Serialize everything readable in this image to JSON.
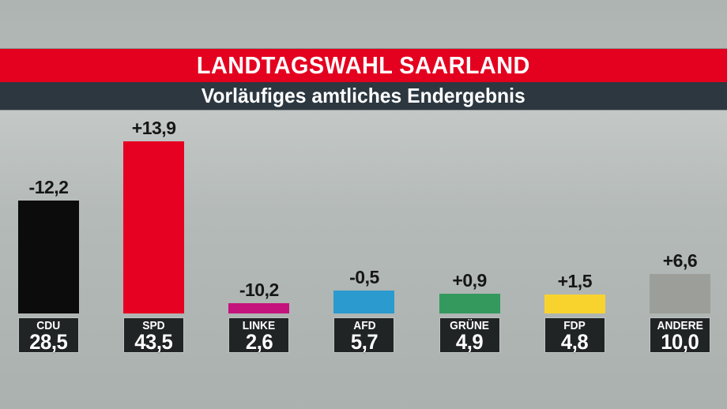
{
  "header": {
    "title": "LANDTAGSWAHL SAARLAND",
    "subtitle": "Vorläufiges amtliches Endergebnis"
  },
  "colors": {
    "banner_red": "#e4001f",
    "banner_dark": "#2c3740",
    "background_gray": "#b2b8b6",
    "result_box_bg": "#212425",
    "result_box_text": "#ffffff",
    "change_label_text": "#161616"
  },
  "chart_data": {
    "type": "bar",
    "title": "LANDTAGSWAHL SAARLAND",
    "subtitle": "Vorläufiges amtliches Endergebnis",
    "categories": [
      "CDU",
      "SPD",
      "LINKE",
      "AFD",
      "GRÜNE",
      "FDP",
      "ANDERE"
    ],
    "values": [
      28.5,
      43.5,
      2.6,
      5.7,
      4.9,
      4.8,
      10.0
    ],
    "ylim": [
      0,
      45
    ],
    "grid": false,
    "legend": false,
    "parties": [
      {
        "name": "CDU",
        "value": 28.5,
        "value_label": "28,5",
        "change": "-12,2",
        "color": "#0c0c0c"
      },
      {
        "name": "SPD",
        "value": 43.5,
        "value_label": "43,5",
        "change": "+13,9",
        "color": "#e60021"
      },
      {
        "name": "LINKE",
        "value": 2.6,
        "value_label": "2,6",
        "change": "-10,2",
        "color": "#c4137c"
      },
      {
        "name": "AFD",
        "value": 5.7,
        "value_label": "5,7",
        "change": "-0,5",
        "color": "#2b9ace"
      },
      {
        "name": "GRÜNE",
        "value": 4.9,
        "value_label": "4,9",
        "change": "+0,9",
        "color": "#33995d"
      },
      {
        "name": "FDP",
        "value": 4.8,
        "value_label": "4,8",
        "change": "+1,5",
        "color": "#f8d32e"
      },
      {
        "name": "ANDERE",
        "value": 10.0,
        "value_label": "10,0",
        "change": "+6,6",
        "color": "#9c9e99"
      }
    ]
  }
}
